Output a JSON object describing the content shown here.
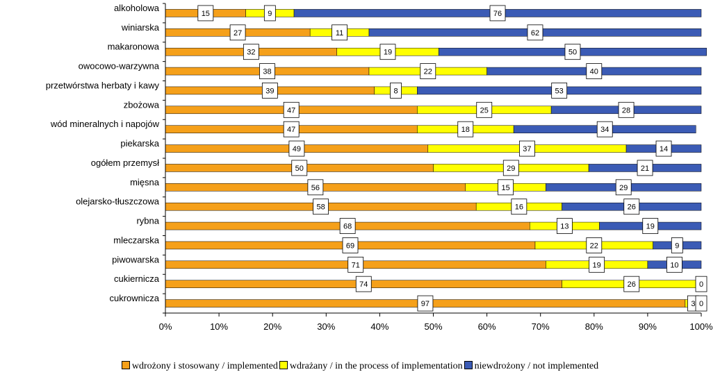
{
  "chart_data": {
    "type": "bar",
    "orientation": "horizontal",
    "stacked": "percent",
    "categories": [
      "alkoholowa",
      "winiarska",
      "makaronowa",
      "owocowo-warzywna",
      "przetwórstwa herbaty i kawy",
      "zbożowa",
      "wód mineralnych i napojów",
      "piekarska",
      "ogółem przemysł",
      "mięsna",
      "olejarsko-tłuszczowa",
      "rybna",
      "mleczarska",
      "piwowarska",
      "cukiernicza",
      "cukrownicza"
    ],
    "series": [
      {
        "name": "wdrożony i stosowany / implemented",
        "color": "#f5a01a",
        "values": [
          15,
          27,
          32,
          38,
          39,
          47,
          47,
          49,
          50,
          56,
          58,
          68,
          69,
          71,
          74,
          97
        ]
      },
      {
        "name": "wdrażany / in the process of implementation",
        "color": "#ffff00",
        "values": [
          9,
          11,
          19,
          22,
          8,
          25,
          18,
          37,
          29,
          15,
          16,
          13,
          22,
          19,
          26,
          3
        ]
      },
      {
        "name": "niewdrożony / not implemented",
        "color": "#3b5bb5",
        "values": [
          76,
          62,
          50,
          40,
          53,
          28,
          34,
          14,
          21,
          29,
          26,
          19,
          9,
          10,
          0,
          0
        ]
      }
    ],
    "xlim": [
      0,
      100
    ],
    "xticks": [
      "0%",
      "10%",
      "20%",
      "30%",
      "40%",
      "50%",
      "60%",
      "70%",
      "80%",
      "90%",
      "100%"
    ],
    "grid": false,
    "legend_position": "bottom",
    "data_labels": true
  }
}
